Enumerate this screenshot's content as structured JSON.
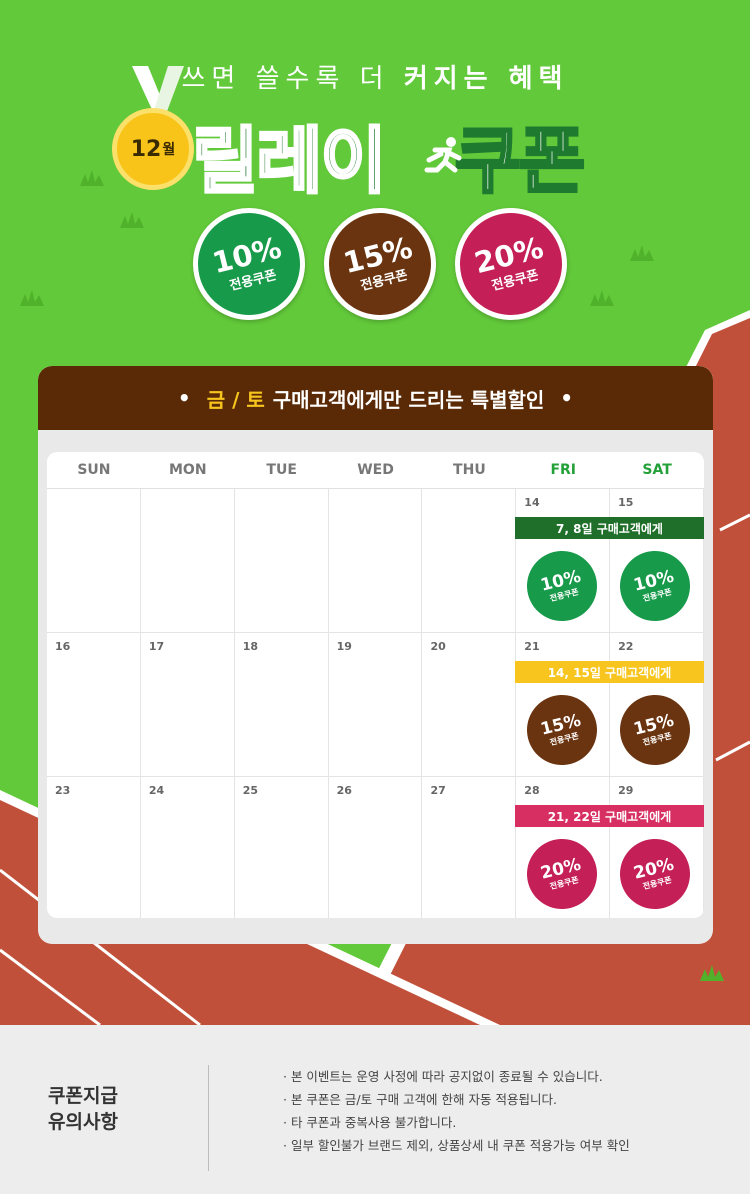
{
  "hero": {
    "subtitle_light": "쓰면 쓸수록 더",
    "subtitle_bold": "커지는 혜택",
    "month_num": "12",
    "month_unit": "월",
    "title_green": "릴레이",
    "title_white": "쿠폰"
  },
  "coupons": [
    {
      "pct": "10%",
      "label": "전용쿠폰",
      "color": "#179a4a"
    },
    {
      "pct": "15%",
      "label": "전용쿠폰",
      "color": "#6b3410"
    },
    {
      "pct": "20%",
      "label": "전용쿠폰",
      "color": "#c41f56"
    }
  ],
  "panel": {
    "dot_left": "•",
    "highlight": "금 / 토",
    "title_rest": "구매고객에게만 드리는 특별할인",
    "dot_right": "•"
  },
  "calendar": {
    "days": [
      "SUN",
      "MON",
      "TUE",
      "WED",
      "THU",
      "FRI",
      "SAT"
    ],
    "weeks": [
      {
        "nums": [
          "",
          "",
          "",
          "",
          "",
          "14",
          "15"
        ],
        "bar": "7, 8일 구매고객에게",
        "coupon_pct": "10%",
        "coupon_label": "전용쿠폰"
      },
      {
        "nums": [
          "16",
          "17",
          "18",
          "19",
          "20",
          "21",
          "22"
        ],
        "bar": "14, 15일 구매고객에게",
        "coupon_pct": "15%",
        "coupon_label": "전용쿠폰"
      },
      {
        "nums": [
          "23",
          "24",
          "25",
          "26",
          "27",
          "28",
          "29"
        ],
        "bar": "21, 22일 구매고객에게",
        "coupon_pct": "20%",
        "coupon_label": "전용쿠폰"
      }
    ]
  },
  "footer": {
    "heading_line1": "쿠폰지급",
    "heading_line2": "유의사항",
    "notes": [
      "본 이벤트는 운영 사정에 따라 공지없이 종료될 수 있습니다.",
      "본 쿠폰은  금/토 구매 고객에  한해 자동 적용됩니다.",
      "타 쿠폰과 중복사용 불가합니다.",
      "일부 할인불가 브랜드 제외, 상품상세 내 쿠폰 적용가능 여부 확인"
    ]
  },
  "colors": {
    "background_green": "#62c93a",
    "track_red": "#c1503a",
    "panel_brown": "#5a2a06",
    "highlight_yellow": "#f7c51e",
    "bar_green": "#1f6f2a",
    "bar_pink": "#d72f62"
  }
}
